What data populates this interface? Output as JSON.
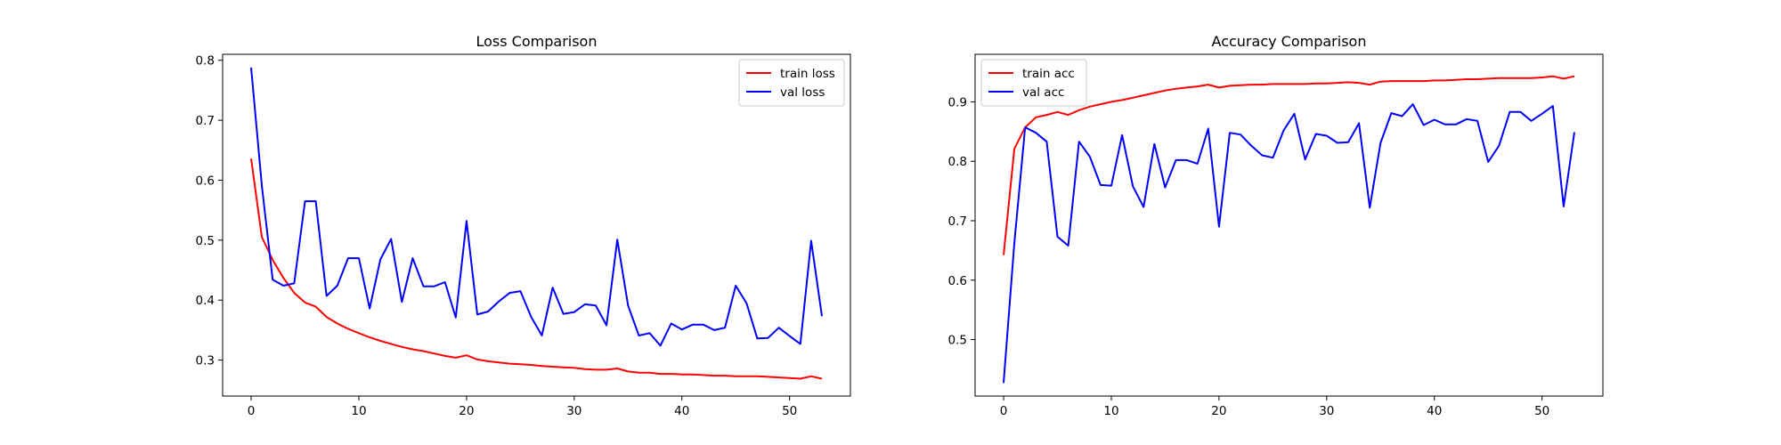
{
  "chart_data": [
    {
      "type": "line",
      "title": "Loss Comparison",
      "xlabel": "",
      "ylabel": "",
      "xlim": [
        -2.65,
        55.65
      ],
      "ylim": [
        0.24,
        0.81
      ],
      "xticks": [
        0,
        10,
        20,
        30,
        40,
        50
      ],
      "yticks": [
        0.3,
        0.4,
        0.5,
        0.6,
        0.7,
        0.8
      ],
      "grid": false,
      "legend": "top-right",
      "x": [
        0,
        1,
        2,
        3,
        4,
        5,
        6,
        7,
        8,
        9,
        10,
        11,
        12,
        13,
        14,
        15,
        16,
        17,
        18,
        19,
        20,
        21,
        22,
        23,
        24,
        25,
        26,
        27,
        28,
        29,
        30,
        31,
        32,
        33,
        34,
        35,
        36,
        37,
        38,
        39,
        40,
        41,
        42,
        43,
        44,
        45,
        46,
        47,
        48,
        49,
        50,
        51,
        52,
        53
      ],
      "series": [
        {
          "name": "train loss",
          "color": "#ff0000",
          "values": [
            0.636,
            0.505,
            0.467,
            0.437,
            0.412,
            0.396,
            0.389,
            0.372,
            0.361,
            0.352,
            0.345,
            0.338,
            0.332,
            0.327,
            0.322,
            0.318,
            0.315,
            0.311,
            0.307,
            0.304,
            0.308,
            0.301,
            0.298,
            0.296,
            0.294,
            0.293,
            0.292,
            0.29,
            0.289,
            0.288,
            0.287,
            0.285,
            0.284,
            0.284,
            0.286,
            0.281,
            0.279,
            0.279,
            0.277,
            0.277,
            0.276,
            0.276,
            0.275,
            0.274,
            0.274,
            0.273,
            0.273,
            0.273,
            0.272,
            0.271,
            0.27,
            0.269,
            0.273,
            0.269
          ]
        },
        {
          "name": "val loss",
          "color": "#0000ff",
          "values": [
            0.788,
            0.59,
            0.434,
            0.424,
            0.428,
            0.565,
            0.565,
            0.407,
            0.424,
            0.47,
            0.47,
            0.386,
            0.468,
            0.502,
            0.397,
            0.47,
            0.423,
            0.423,
            0.43,
            0.371,
            0.532,
            0.376,
            0.381,
            0.398,
            0.412,
            0.415,
            0.372,
            0.341,
            0.421,
            0.377,
            0.38,
            0.393,
            0.391,
            0.358,
            0.501,
            0.391,
            0.341,
            0.345,
            0.324,
            0.361,
            0.351,
            0.359,
            0.359,
            0.35,
            0.354,
            0.424,
            0.395,
            0.336,
            0.337,
            0.354,
            0.34,
            0.327,
            0.499,
            0.373
          ]
        }
      ]
    },
    {
      "type": "line",
      "title": "Accuracy Comparison",
      "xlabel": "",
      "ylabel": "",
      "xlim": [
        -2.65,
        55.65
      ],
      "ylim": [
        0.405,
        0.98
      ],
      "xticks": [
        0,
        10,
        20,
        30,
        40,
        50
      ],
      "yticks": [
        0.5,
        0.6,
        0.7,
        0.8,
        0.9
      ],
      "grid": false,
      "legend": "top-left",
      "x": [
        0,
        1,
        2,
        3,
        4,
        5,
        6,
        7,
        8,
        9,
        10,
        11,
        12,
        13,
        14,
        15,
        16,
        17,
        18,
        19,
        20,
        21,
        22,
        23,
        24,
        25,
        26,
        27,
        28,
        29,
        30,
        31,
        32,
        33,
        34,
        35,
        36,
        37,
        38,
        39,
        40,
        41,
        42,
        43,
        44,
        45,
        46,
        47,
        48,
        49,
        50,
        51,
        52,
        53
      ],
      "series": [
        {
          "name": "train acc",
          "color": "#ff0000",
          "values": [
            0.642,
            0.821,
            0.857,
            0.874,
            0.878,
            0.883,
            0.878,
            0.886,
            0.892,
            0.896,
            0.9,
            0.903,
            0.907,
            0.911,
            0.915,
            0.919,
            0.922,
            0.924,
            0.926,
            0.929,
            0.924,
            0.927,
            0.928,
            0.929,
            0.929,
            0.93,
            0.93,
            0.93,
            0.93,
            0.931,
            0.931,
            0.932,
            0.933,
            0.932,
            0.929,
            0.934,
            0.935,
            0.935,
            0.935,
            0.935,
            0.936,
            0.936,
            0.937,
            0.938,
            0.938,
            0.939,
            0.94,
            0.94,
            0.94,
            0.94,
            0.941,
            0.943,
            0.939,
            0.943
          ]
        },
        {
          "name": "val acc",
          "color": "#0000ff",
          "values": [
            0.427,
            0.663,
            0.857,
            0.848,
            0.833,
            0.673,
            0.658,
            0.833,
            0.808,
            0.76,
            0.759,
            0.844,
            0.758,
            0.723,
            0.829,
            0.756,
            0.802,
            0.802,
            0.796,
            0.855,
            0.69,
            0.848,
            0.845,
            0.826,
            0.81,
            0.806,
            0.852,
            0.88,
            0.803,
            0.846,
            0.843,
            0.831,
            0.832,
            0.864,
            0.722,
            0.831,
            0.881,
            0.876,
            0.896,
            0.861,
            0.87,
            0.862,
            0.862,
            0.871,
            0.868,
            0.799,
            0.826,
            0.883,
            0.883,
            0.868,
            0.88,
            0.893,
            0.724,
            0.849
          ]
        }
      ]
    }
  ]
}
